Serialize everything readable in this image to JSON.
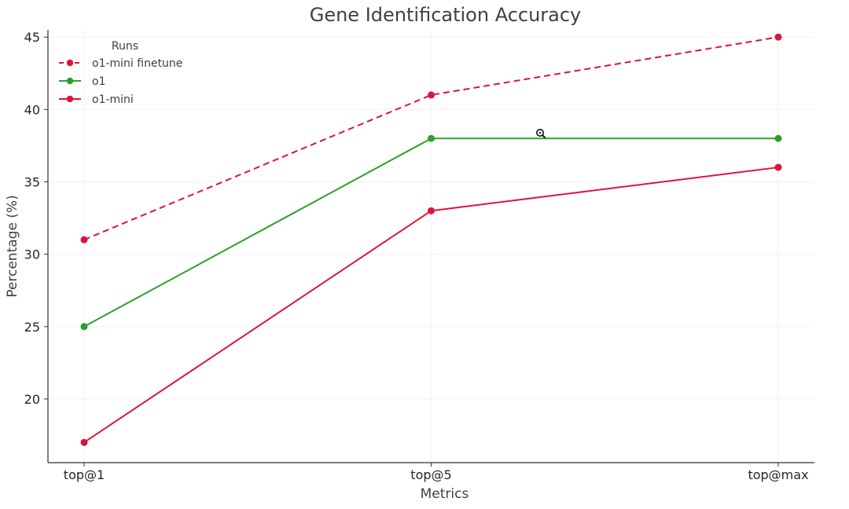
{
  "chart_data": {
    "type": "line",
    "title": "Gene Identification Accuracy",
    "xlabel": "Metrics",
    "ylabel": "Percentage (%)",
    "categories": [
      "top@1",
      "top@5",
      "top@max"
    ],
    "ylim": [
      15.6,
      45.5
    ],
    "yticks": [
      20,
      25,
      30,
      35,
      40,
      45
    ],
    "grid": true,
    "legend": {
      "title": "Runs",
      "position": "top-left"
    },
    "series": [
      {
        "name": "o1-mini finetune",
        "values": [
          31,
          41,
          45
        ],
        "color": "#dc143c",
        "linestyle": "dashed"
      },
      {
        "name": "o1",
        "values": [
          25,
          38,
          38
        ],
        "color": "#2ca02c",
        "linestyle": "solid"
      },
      {
        "name": "o1-mini",
        "values": [
          17,
          33,
          36
        ],
        "color": "#dc143c",
        "linestyle": "solid"
      }
    ]
  }
}
